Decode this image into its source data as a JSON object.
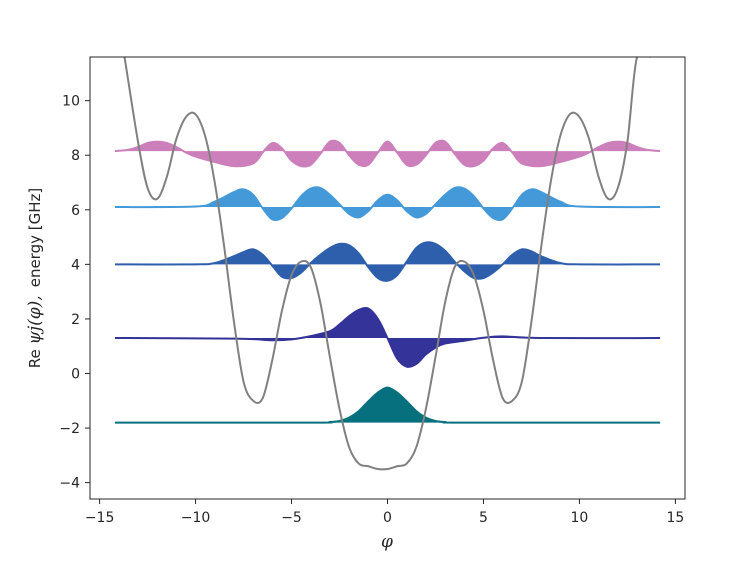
{
  "chart_data": {
    "type": "line",
    "title": "",
    "xlabel": "φ",
    "ylabel_prefix": "Re ",
    "ylabel_symbol": "ψj(φ),",
    "ylabel_suffix": "energy [GHz]",
    "xlim": [
      -15.5,
      15.5
    ],
    "ylim": [
      -4.6,
      11.6
    ],
    "xticks": [
      -15,
      -10,
      -5,
      0,
      5,
      10,
      15
    ],
    "xtick_labels": [
      "−15",
      "−10",
      "−5",
      "0",
      "5",
      "10",
      "15"
    ],
    "yticks": [
      -4,
      -2,
      0,
      2,
      4,
      6,
      8,
      10
    ],
    "ytick_labels": [
      "−4",
      "−2",
      "0",
      "2",
      "4",
      "6",
      "8",
      "10"
    ],
    "grid": false,
    "potential": {
      "name": "potential",
      "color": "#808080",
      "x": [
        -13.7,
        -13.0,
        -12.5,
        -12.0,
        -11.5,
        -11.0,
        -10.5,
        -10.0,
        -9.5,
        -9.0,
        -8.5,
        -8.0,
        -7.5,
        -7.0,
        -6.5,
        -6.0,
        -5.5,
        -5.0,
        -4.5,
        -4.0,
        -3.5,
        -3.0,
        -2.5,
        -2.0,
        -1.5,
        -1.0,
        -0.5,
        0.0,
        0.5,
        1.0,
        1.5,
        2.0,
        2.5,
        3.0,
        3.5,
        4.0,
        4.5,
        5.0,
        5.5,
        6.0,
        6.5,
        7.0,
        7.5,
        8.0,
        8.5,
        9.0,
        9.5,
        10.0,
        10.5,
        11.0,
        11.5,
        12.0,
        12.5,
        13.0,
        13.7
      ],
      "y": [
        11.6,
        8.5,
        6.8,
        6.4,
        7.2,
        8.6,
        9.4,
        9.5,
        8.7,
        7.0,
        4.6,
        1.9,
        -0.3,
        -1.0,
        -0.9,
        0.5,
        2.3,
        3.6,
        4.1,
        3.9,
        2.6,
        0.6,
        -1.3,
        -2.7,
        -3.3,
        -3.4,
        -3.5,
        -3.5,
        -3.4,
        -3.3,
        -2.7,
        -1.3,
        0.6,
        2.6,
        3.9,
        4.1,
        3.6,
        2.3,
        0.5,
        -0.9,
        -1.0,
        -0.3,
        1.9,
        4.6,
        7.0,
        8.7,
        9.5,
        9.4,
        8.6,
        7.2,
        6.4,
        6.8,
        8.5,
        11.6,
        11.6
      ]
    },
    "wavefunctions": [
      {
        "level": 0,
        "energy": -1.8,
        "color": "#06707e",
        "x": [
          -14.2,
          -4.0,
          -3.0,
          -2.5,
          -2.0,
          -1.5,
          -1.0,
          -0.5,
          0.0,
          0.5,
          1.0,
          1.5,
          2.0,
          2.5,
          3.0,
          4.0,
          14.2
        ],
        "y": [
          -1.8,
          -1.8,
          -1.78,
          -1.74,
          -1.62,
          -1.38,
          -1.02,
          -0.7,
          -0.52,
          -0.7,
          -1.02,
          -1.38,
          -1.62,
          -1.74,
          -1.78,
          -1.8,
          -1.8
        ]
      },
      {
        "level": 1,
        "energy": 1.3,
        "color": "#333399",
        "x": [
          -14.2,
          -8.0,
          -6.0,
          -5.0,
          -4.0,
          -3.0,
          -2.5,
          -2.0,
          -1.5,
          -1.0,
          -0.5,
          0.0,
          0.5,
          1.0,
          1.5,
          2.0,
          2.5,
          3.0,
          4.0,
          5.0,
          6.0,
          8.0,
          14.2
        ],
        "y": [
          1.3,
          1.28,
          1.22,
          1.25,
          1.37,
          1.55,
          1.8,
          2.1,
          2.33,
          2.38,
          2.0,
          1.3,
          0.55,
          0.25,
          0.35,
          0.7,
          0.95,
          1.1,
          1.2,
          1.31,
          1.36,
          1.3,
          1.3
        ]
      },
      {
        "level": 2,
        "energy": 4.0,
        "color": "#2e5fac",
        "x": [
          -14.2,
          -10.0,
          -9.0,
          -8.0,
          -7.5,
          -7.0,
          -6.5,
          -6.0,
          -5.5,
          -5.0,
          -4.5,
          -4.0,
          -3.5,
          -3.0,
          -2.5,
          -2.0,
          -1.5,
          -1.0,
          -0.5,
          0.0,
          0.5,
          1.0,
          1.5,
          2.0,
          2.5,
          3.0,
          3.5,
          4.0,
          4.5,
          5.0,
          5.5,
          6.0,
          6.5,
          7.0,
          7.5,
          8.0,
          9.0,
          10.0,
          14.2
        ],
        "y": [
          4.0,
          4.0,
          4.05,
          4.3,
          4.45,
          4.55,
          4.35,
          3.95,
          3.55,
          3.5,
          3.7,
          4.05,
          4.35,
          4.6,
          4.75,
          4.7,
          4.4,
          3.9,
          3.5,
          3.4,
          3.6,
          4.1,
          4.6,
          4.8,
          4.75,
          4.5,
          4.1,
          3.75,
          3.5,
          3.5,
          3.7,
          4.0,
          4.35,
          4.55,
          4.48,
          4.3,
          4.05,
          4.0,
          4.0
        ]
      },
      {
        "level": 3,
        "energy": 6.1,
        "color": "#449ad8",
        "x": [
          -14.2,
          -10.0,
          -9.0,
          -8.0,
          -7.5,
          -7.0,
          -6.5,
          -6.0,
          -5.5,
          -5.0,
          -4.5,
          -4.0,
          -3.5,
          -3.0,
          -2.5,
          -2.0,
          -1.5,
          -1.0,
          -0.5,
          0.0,
          0.5,
          1.0,
          1.5,
          2.0,
          2.5,
          3.0,
          3.5,
          4.0,
          4.5,
          5.0,
          5.5,
          6.0,
          6.5,
          7.0,
          7.5,
          8.0,
          9.0,
          10.0,
          14.2
        ],
        "y": [
          6.1,
          6.12,
          6.3,
          6.65,
          6.75,
          6.55,
          6.05,
          5.65,
          5.7,
          6.05,
          6.5,
          6.78,
          6.8,
          6.55,
          6.2,
          5.85,
          5.72,
          5.95,
          6.35,
          6.55,
          6.35,
          5.95,
          5.72,
          5.85,
          6.2,
          6.55,
          6.8,
          6.78,
          6.5,
          6.05,
          5.7,
          5.65,
          6.05,
          6.55,
          6.75,
          6.65,
          6.3,
          6.12,
          6.1
        ]
      },
      {
        "level": 4,
        "energy": 8.15,
        "color": "#cc7fbb",
        "x": [
          -14.2,
          -13.5,
          -13.0,
          -12.5,
          -12.0,
          -11.5,
          -11.0,
          -10.5,
          -10.0,
          -9.0,
          -8.0,
          -7.0,
          -6.5,
          -6.0,
          -5.5,
          -5.0,
          -4.5,
          -4.0,
          -3.5,
          -3.0,
          -2.5,
          -2.0,
          -1.5,
          -1.0,
          -0.5,
          0.0,
          0.5,
          1.0,
          1.5,
          2.0,
          2.5,
          3.0,
          3.5,
          4.0,
          4.5,
          5.0,
          5.5,
          6.0,
          6.5,
          7.0,
          8.0,
          9.0,
          10.0,
          10.5,
          11.0,
          11.5,
          12.0,
          12.5,
          13.0,
          13.5,
          14.2
        ],
        "y": [
          8.15,
          8.2,
          8.3,
          8.45,
          8.5,
          8.45,
          8.3,
          8.1,
          7.95,
          7.75,
          7.6,
          7.7,
          8.1,
          8.45,
          8.25,
          7.8,
          7.6,
          7.65,
          8.05,
          8.5,
          8.45,
          8.0,
          7.65,
          7.65,
          8.1,
          8.5,
          8.1,
          7.65,
          7.65,
          8.0,
          8.45,
          8.5,
          8.05,
          7.65,
          7.6,
          7.8,
          8.25,
          8.45,
          8.1,
          7.7,
          7.6,
          7.75,
          7.95,
          8.1,
          8.3,
          8.45,
          8.5,
          8.45,
          8.3,
          8.2,
          8.15
        ]
      }
    ]
  }
}
